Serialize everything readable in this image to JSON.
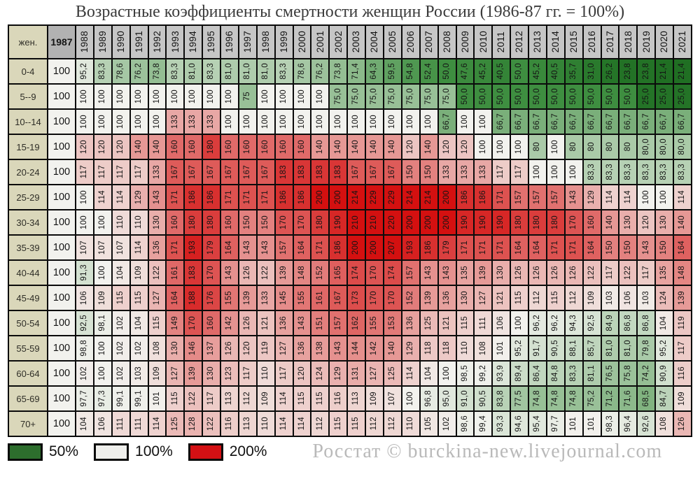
{
  "title": "Возрастные коэффициенты смертности женщин России (1986-87 гг. = 100%)",
  "watermark": "Росстат © burckina-new.livejournal.com",
  "colors": {
    "green_dark": "#1f6e22",
    "green_50": "#3e8e40",
    "white_100": "#f2f2ee",
    "red_200": "#d41010",
    "year_header_bg": "#c6c6c6",
    "baseline_header_bg": "#b2b2b2",
    "age_label_bg": "#dad7ba"
  },
  "legend": [
    {
      "label": "50%",
      "color": "#2d6e2d"
    },
    {
      "label": "100%",
      "color": "#efefec"
    },
    {
      "label": "200%",
      "color": "#d41014"
    }
  ],
  "chart_data": {
    "type": "heatmap",
    "title": "Возрастные коэффициенты смертности женщин России (1986-87 гг. = 100%)",
    "row_header": "жен.",
    "baseline": {
      "header": "1987",
      "value": "100"
    },
    "years": [
      "1988",
      "1989",
      "1990",
      "1991",
      "1992",
      "1993",
      "1994",
      "1995",
      "1996",
      "1997",
      "1998",
      "1999",
      "2000",
      "2001",
      "2002",
      "2003",
      "2004",
      "2005",
      "2006",
      "2007",
      "2008",
      "2009",
      "2010",
      "2011",
      "2012",
      "2013",
      "2014",
      "2015",
      "2016",
      "2017",
      "2018",
      "2019",
      "2020",
      "2021"
    ],
    "rows": [
      {
        "age": "0-4",
        "values": [
          "95,2",
          "83,3",
          "78,6",
          "76,2",
          "73,8",
          "83,3",
          "81,0",
          "83,3",
          "81,0",
          "81,0",
          "81,0",
          "83,3",
          "78,6",
          "76,2",
          "73,8",
          "71,4",
          "64,3",
          "59,5",
          "54,8",
          "52,4",
          "50,0",
          "47,6",
          "45,2",
          "40,5",
          "50,0",
          "45,2",
          "40,5",
          "35,7",
          "31,0",
          "26,2",
          "23,8",
          "23,8",
          "21,4",
          "21,4"
        ]
      },
      {
        "age": "5--9",
        "values": [
          "100",
          "100",
          "100",
          "100",
          "100",
          "100",
          "100",
          "100",
          "100",
          "75",
          "100",
          "100",
          "100",
          "100",
          "75,0",
          "75,0",
          "75,0",
          "75,0",
          "75,0",
          "75,0",
          "75,0",
          "50,0",
          "50,0",
          "50,0",
          "50,0",
          "50,0",
          "50,0",
          "50,0",
          "50,0",
          "50,0",
          "50,0",
          "25,0",
          "25,0",
          "25,0"
        ]
      },
      {
        "age": "10--14",
        "values": [
          "100",
          "100",
          "100",
          "100",
          "100",
          "133",
          "133",
          "133",
          "100",
          "100",
          "100",
          "100",
          "100",
          "100",
          "100",
          "100",
          "100",
          "100",
          "100",
          "100",
          "66,7",
          "100",
          "100",
          "66,7",
          "66,7",
          "66,7",
          "66,7",
          "66,7",
          "66,7",
          "66,7",
          "66,7",
          "66,7",
          "66,7",
          "66,7"
        ]
      },
      {
        "age": "15-19",
        "values": [
          "120",
          "120",
          "120",
          "140",
          "140",
          "160",
          "160",
          "180",
          "160",
          "160",
          "160",
          "160",
          "160",
          "140",
          "140",
          "140",
          "140",
          "140",
          "120",
          "140",
          "120",
          "120",
          "100",
          "100",
          "100",
          "80",
          "100",
          "80",
          "80",
          "80",
          "80",
          "80,0",
          "80,0",
          "80,0"
        ]
      },
      {
        "age": "20-24",
        "values": [
          "117",
          "117",
          "117",
          "117",
          "133",
          "167",
          "167",
          "167",
          "167",
          "167",
          "167",
          "183",
          "183",
          "183",
          "183",
          "167",
          "167",
          "167",
          "150",
          "150",
          "133",
          "133",
          "133",
          "117",
          "117",
          "100",
          "100",
          "100",
          "83,3",
          "83,3",
          "83,3",
          "83,3",
          "83,3",
          "83,3"
        ]
      },
      {
        "age": "25-29",
        "values": [
          "100",
          "114",
          "114",
          "129",
          "143",
          "171",
          "186",
          "186",
          "171",
          "171",
          "171",
          "186",
          "186",
          "200",
          "200",
          "214",
          "229",
          "229",
          "214",
          "214",
          "200",
          "186",
          "186",
          "171",
          "157",
          "157",
          "157",
          "143",
          "129",
          "114",
          "114",
          "100",
          "100",
          "114"
        ]
      },
      {
        "age": "30-34",
        "values": [
          "100",
          "100",
          "110",
          "110",
          "130",
          "160",
          "180",
          "180",
          "160",
          "150",
          "150",
          "170",
          "170",
          "180",
          "190",
          "210",
          "210",
          "220",
          "200",
          "200",
          "200",
          "190",
          "190",
          "190",
          "180",
          "180",
          "180",
          "170",
          "160",
          "140",
          "130",
          "120",
          "130",
          "140"
        ]
      },
      {
        "age": "35-39",
        "values": [
          "107",
          "107",
          "107",
          "114",
          "136",
          "171",
          "193",
          "179",
          "164",
          "143",
          "143",
          "157",
          "164",
          "171",
          "186",
          "200",
          "200",
          "207",
          "193",
          "186",
          "179",
          "171",
          "171",
          "171",
          "164",
          "164",
          "171",
          "171",
          "164",
          "150",
          "150",
          "143",
          "150",
          "164"
        ]
      },
      {
        "age": "40-44",
        "values": [
          "91,3",
          "100",
          "104",
          "109",
          "122",
          "161",
          "183",
          "170",
          "143",
          "126",
          "122",
          "139",
          "148",
          "152",
          "165",
          "174",
          "170",
          "174",
          "157",
          "143",
          "143",
          "135",
          "139",
          "130",
          "126",
          "126",
          "126",
          "126",
          "122",
          "117",
          "122",
          "117",
          "135",
          "148"
        ]
      },
      {
        "age": "45-49",
        "values": [
          "106",
          "109",
          "115",
          "115",
          "127",
          "164",
          "188",
          "176",
          "155",
          "139",
          "133",
          "145",
          "155",
          "161",
          "167",
          "173",
          "170",
          "170",
          "152",
          "139",
          "136",
          "130",
          "127",
          "121",
          "115",
          "112",
          "115",
          "112",
          "109",
          "103",
          "106",
          "103",
          "124",
          "139"
        ]
      },
      {
        "age": "50-54",
        "values": [
          "92,5",
          "98,1",
          "102",
          "104",
          "115",
          "149",
          "170",
          "160",
          "142",
          "126",
          "121",
          "136",
          "143",
          "151",
          "157",
          "162",
          "155",
          "153",
          "136",
          "125",
          "121",
          "115",
          "111",
          "106",
          "100",
          "96,2",
          "96,2",
          "94,3",
          "92,5",
          "84,9",
          "86,8",
          "86,8",
          "104",
          "119"
        ]
      },
      {
        "age": "55-59",
        "values": [
          "98,8",
          "100",
          "102",
          "102",
          "108",
          "130",
          "146",
          "137",
          "126",
          "120",
          "119",
          "127",
          "136",
          "138",
          "143",
          "144",
          "142",
          "140",
          "129",
          "118",
          "118",
          "110",
          "108",
          "101",
          "95,2",
          "91,7",
          "90,5",
          "88,1",
          "85,7",
          "81,0",
          "81,0",
          "79,8",
          "95,2",
          "117"
        ]
      },
      {
        "age": "60-64",
        "values": [
          "102",
          "100",
          "102",
          "103",
          "109",
          "127",
          "139",
          "130",
          "123",
          "117",
          "110",
          "117",
          "120",
          "124",
          "129",
          "131",
          "127",
          "125",
          "114",
          "104",
          "100",
          "98,5",
          "99,2",
          "93,9",
          "89,4",
          "86,4",
          "84,8",
          "83,3",
          "81,1",
          "76,5",
          "75,8",
          "74,2",
          "90,9",
          "116"
        ]
      },
      {
        "age": "65-69",
        "values": [
          "97,7",
          "97,3",
          "99,1",
          "99,1",
          "101",
          "115",
          "122",
          "117",
          "113",
          "112",
          "109",
          "114",
          "115",
          "115",
          "116",
          "113",
          "109",
          "107",
          "100",
          "96,8",
          "95,0",
          "91,0",
          "90,5",
          "83,8",
          "77,5",
          "74,8",
          "74,8",
          "74,8",
          "75,2",
          "71,2",
          "71,6",
          "68,5",
          "84,7",
          "109"
        ]
      },
      {
        "age": "70+",
        "values": [
          "104",
          "106",
          "111",
          "111",
          "114",
          "125",
          "128",
          "122",
          "116",
          "113",
          "110",
          "114",
          "114",
          "112",
          "115",
          "115",
          "112",
          "112",
          "110",
          "105",
          "102",
          "98,6",
          "99,4",
          "93,3",
          "94,6",
          "95,4",
          "97,7",
          "101",
          "101",
          "98,3",
          "96,4",
          "92,6",
          "108",
          "126"
        ]
      }
    ],
    "legend": [
      {
        "label": "50%",
        "color": "#2d6e2d"
      },
      {
        "label": "100%",
        "color": "#efefec"
      },
      {
        "label": "200%",
        "color": "#d41014"
      }
    ],
    "layout": {
      "grid": true,
      "legend_position": "bottom-left",
      "value_orientation": "vertical-bottom-up"
    }
  }
}
